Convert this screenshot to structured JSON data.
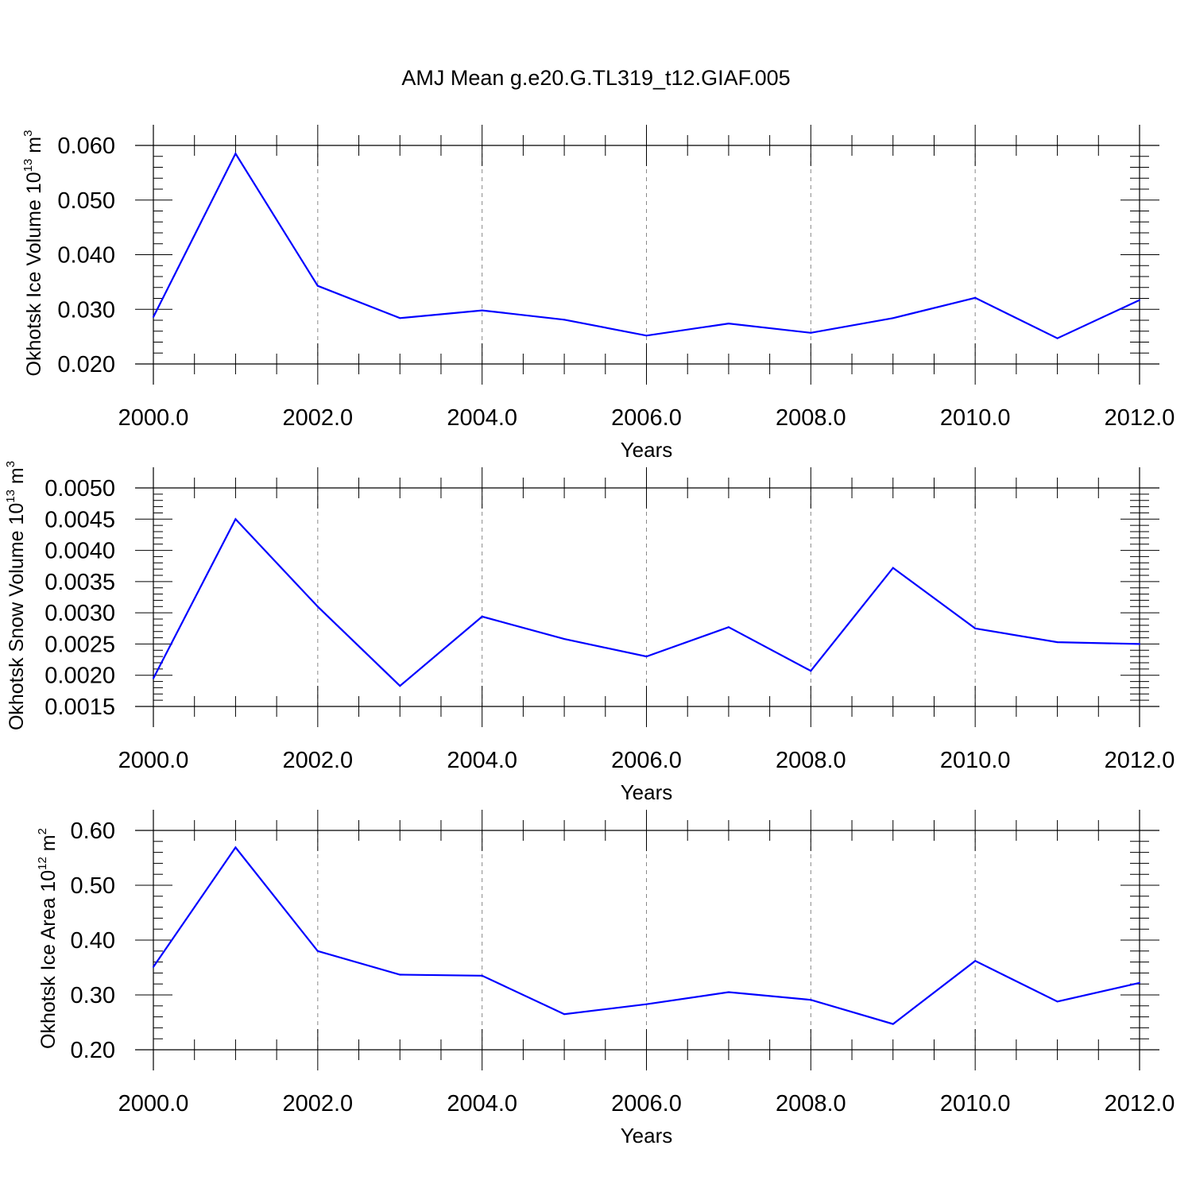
{
  "title": "AMJ Mean g.e20.G.TL319_t12.GIAF.005",
  "colors": {
    "series": "#0000ff",
    "axis": "#000000",
    "grid": "#888888"
  },
  "chart_data": [
    {
      "type": "line",
      "xlabel": "Years",
      "ylabel": {
        "text": "Okhotsk Ice Volume 10",
        "exp": "13",
        "unit": " m",
        "unit_exp": "3"
      },
      "xlim": [
        2000,
        2012
      ],
      "ylim": [
        0.02,
        0.06
      ],
      "xticks": [
        "2000.0",
        "2002.0",
        "2004.0",
        "2006.0",
        "2008.0",
        "2010.0",
        "2012.0"
      ],
      "yticks": [
        "0.020",
        "0.030",
        "0.040",
        "0.050",
        "0.060"
      ],
      "grid": "vertical dashed at major x ticks",
      "x": [
        2000,
        2001,
        2002,
        2003,
        2004,
        2005,
        2006,
        2007,
        2008,
        2009,
        2010,
        2011,
        2012
      ],
      "values": [
        0.0286,
        0.0585,
        0.0343,
        0.0284,
        0.0298,
        0.0281,
        0.0252,
        0.0274,
        0.0257,
        0.0284,
        0.0321,
        0.0247,
        0.0317
      ]
    },
    {
      "type": "line",
      "xlabel": "Years",
      "ylabel": {
        "text": "Okhotsk Snow Volume 10",
        "exp": "13",
        "unit": " m",
        "unit_exp": "3"
      },
      "xlim": [
        2000,
        2012
      ],
      "ylim": [
        0.0015,
        0.005
      ],
      "xticks": [
        "2000.0",
        "2002.0",
        "2004.0",
        "2006.0",
        "2008.0",
        "2010.0",
        "2012.0"
      ],
      "yticks": [
        "0.0015",
        "0.0020",
        "0.0025",
        "0.0030",
        "0.0035",
        "0.0040",
        "0.0045",
        "0.0050"
      ],
      "grid": "vertical dashed at major x ticks",
      "x": [
        2000,
        2001,
        2002,
        2003,
        2004,
        2005,
        2006,
        2007,
        2008,
        2009,
        2010,
        2011,
        2012
      ],
      "values": [
        0.00195,
        0.0045,
        0.0031,
        0.00183,
        0.00294,
        0.00258,
        0.0023,
        0.00277,
        0.00207,
        0.00372,
        0.00275,
        0.00253,
        0.0025
      ]
    },
    {
      "type": "line",
      "xlabel": "Years",
      "ylabel": {
        "text": "Okhotsk Ice Area 10",
        "exp": "12",
        "unit": " m",
        "unit_exp": "2"
      },
      "xlim": [
        2000,
        2012
      ],
      "ylim": [
        0.2,
        0.6
      ],
      "xticks": [
        "2000.0",
        "2002.0",
        "2004.0",
        "2006.0",
        "2008.0",
        "2010.0",
        "2012.0"
      ],
      "yticks": [
        "0.20",
        "0.30",
        "0.40",
        "0.50",
        "0.60"
      ],
      "grid": "vertical dashed at major x ticks",
      "x": [
        2000,
        2001,
        2002,
        2003,
        2004,
        2005,
        2006,
        2007,
        2008,
        2009,
        2010,
        2011,
        2012
      ],
      "values": [
        0.351,
        0.569,
        0.38,
        0.337,
        0.335,
        0.265,
        0.283,
        0.305,
        0.291,
        0.247,
        0.362,
        0.288,
        0.322
      ]
    }
  ]
}
